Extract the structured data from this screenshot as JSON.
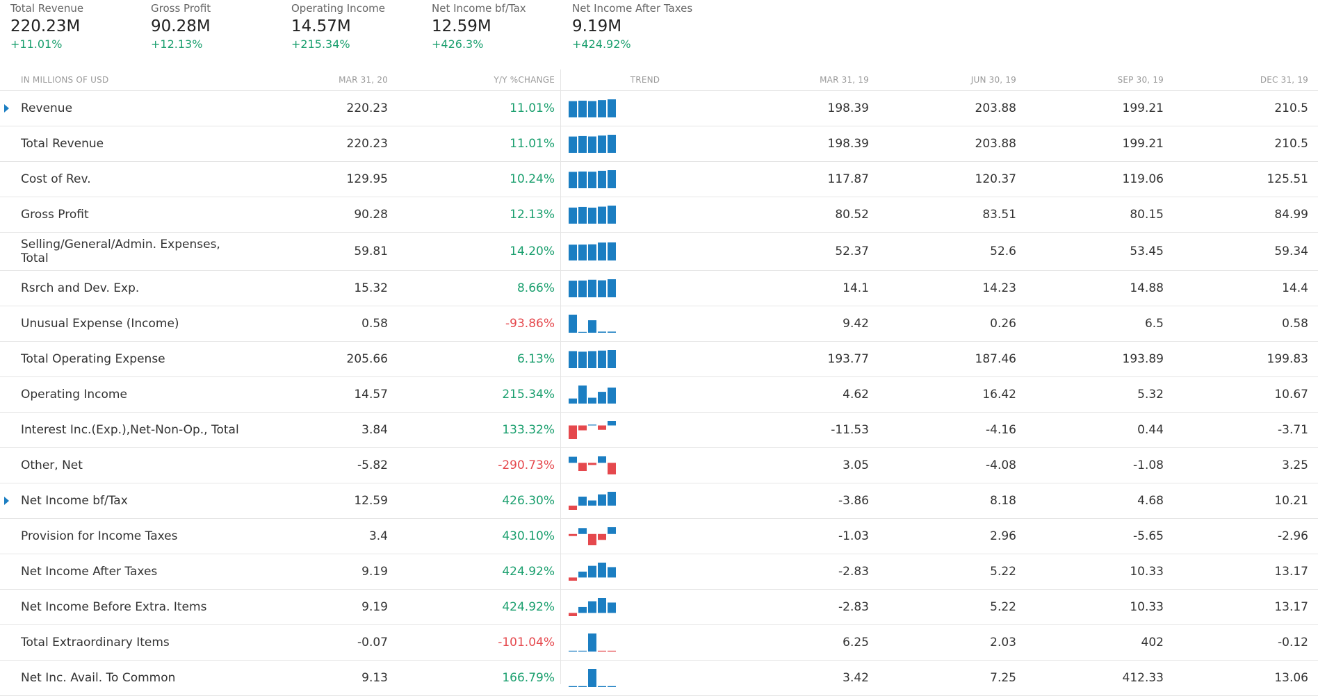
{
  "summary": [
    {
      "label": "Total Revenue",
      "value": "220.23M",
      "change": "+11.01%"
    },
    {
      "label": "Gross Profit",
      "value": "90.28M",
      "change": "+12.13%"
    },
    {
      "label": "Operating Income",
      "value": "14.57M",
      "change": "+215.34%"
    },
    {
      "label": "Net Income bf/Tax",
      "value": "12.59M",
      "change": "+426.3%"
    },
    {
      "label": "Net Income After Taxes",
      "value": "9.19M",
      "change": "+424.92%"
    }
  ],
  "header": {
    "label": "IN MILLIONS OF USD",
    "mar20": "MAR 31, 20",
    "yy": "Y/Y %CHANGE",
    "trend": "TREND",
    "mar19": "MAR 31, 19",
    "jun19": "JUN 30, 19",
    "sep19": "SEP 30, 19",
    "dec19": "DEC 31, 19"
  },
  "colors": {
    "positive": "#1a9f6e",
    "negative": "#e5484d",
    "bar_positive": "#1b7ec2",
    "bar_negative": "#e5484d"
  },
  "rows": [
    {
      "label": "Revenue",
      "expandable": true,
      "mar20": "220.23",
      "yy": "11.01%",
      "yy_sign": "pos",
      "mar19": "198.39",
      "jun19": "203.88",
      "sep19": "199.21",
      "dec19": "210.5"
    },
    {
      "label": "Total Revenue",
      "mar20": "220.23",
      "yy": "11.01%",
      "yy_sign": "pos",
      "mar19": "198.39",
      "jun19": "203.88",
      "sep19": "199.21",
      "dec19": "210.5"
    },
    {
      "label": "Cost of Rev.",
      "mar20": "129.95",
      "yy": "10.24%",
      "yy_sign": "pos",
      "mar19": "117.87",
      "jun19": "120.37",
      "sep19": "119.06",
      "dec19": "125.51"
    },
    {
      "label": "Gross Profit",
      "mar20": "90.28",
      "yy": "12.13%",
      "yy_sign": "pos",
      "mar19": "80.52",
      "jun19": "83.51",
      "sep19": "80.15",
      "dec19": "84.99"
    },
    {
      "label": "Selling/General/Admin. Expenses, Total",
      "tall": true,
      "mar20": "59.81",
      "yy": "14.20%",
      "yy_sign": "pos",
      "mar19": "52.37",
      "jun19": "52.6",
      "sep19": "53.45",
      "dec19": "59.34"
    },
    {
      "label": "Rsrch and Dev. Exp.",
      "mar20": "15.32",
      "yy": "8.66%",
      "yy_sign": "pos",
      "mar19": "14.1",
      "jun19": "14.23",
      "sep19": "14.88",
      "dec19": "14.4"
    },
    {
      "label": "Unusual Expense (Income)",
      "mar20": "0.58",
      "yy": "-93.86%",
      "yy_sign": "neg",
      "mar19": "9.42",
      "jun19": "0.26",
      "sep19": "6.5",
      "dec19": "0.58"
    },
    {
      "label": "Total Operating Expense",
      "mar20": "205.66",
      "yy": "6.13%",
      "yy_sign": "pos",
      "mar19": "193.77",
      "jun19": "187.46",
      "sep19": "193.89",
      "dec19": "199.83"
    },
    {
      "label": "Operating Income",
      "mar20": "14.57",
      "yy": "215.34%",
      "yy_sign": "pos",
      "mar19": "4.62",
      "jun19": "16.42",
      "sep19": "5.32",
      "dec19": "10.67"
    },
    {
      "label": "Interest Inc.(Exp.),Net-Non-Op., Total",
      "mar20": "3.84",
      "yy": "133.32%",
      "yy_sign": "pos",
      "mar19": "-11.53",
      "jun19": "-4.16",
      "sep19": "0.44",
      "dec19": "-3.71"
    },
    {
      "label": "Other, Net",
      "mar20": "-5.82",
      "yy": "-290.73%",
      "yy_sign": "neg",
      "mar19": "3.05",
      "jun19": "-4.08",
      "sep19": "-1.08",
      "dec19": "3.25"
    },
    {
      "label": "Net Income bf/Tax",
      "expandable": true,
      "mar20": "12.59",
      "yy": "426.30%",
      "yy_sign": "pos",
      "mar19": "-3.86",
      "jun19": "8.18",
      "sep19": "4.68",
      "dec19": "10.21"
    },
    {
      "label": "Provision for Income Taxes",
      "mar20": "3.4",
      "yy": "430.10%",
      "yy_sign": "pos",
      "mar19": "-1.03",
      "jun19": "2.96",
      "sep19": "-5.65",
      "dec19": "-2.96"
    },
    {
      "label": "Net Income After Taxes",
      "mar20": "9.19",
      "yy": "424.92%",
      "yy_sign": "pos",
      "mar19": "-2.83",
      "jun19": "5.22",
      "sep19": "10.33",
      "dec19": "13.17"
    },
    {
      "label": "Net Income Before Extra. Items",
      "mar20": "9.19",
      "yy": "424.92%",
      "yy_sign": "pos",
      "mar19": "-2.83",
      "jun19": "5.22",
      "sep19": "10.33",
      "dec19": "13.17"
    },
    {
      "label": "Total Extraordinary Items",
      "mar20": "-0.07",
      "yy": "-101.04%",
      "yy_sign": "neg",
      "mar19": "6.25",
      "jun19": "2.03",
      "sep19": "402",
      "dec19": "-0.12"
    },
    {
      "label": "Net Inc. Avail. To Common",
      "mar20": "9.13",
      "yy": "166.79%",
      "yy_sign": "pos",
      "mar19": "3.42",
      "jun19": "7.25",
      "sep19": "412.33",
      "dec19": "13.06"
    }
  ]
}
